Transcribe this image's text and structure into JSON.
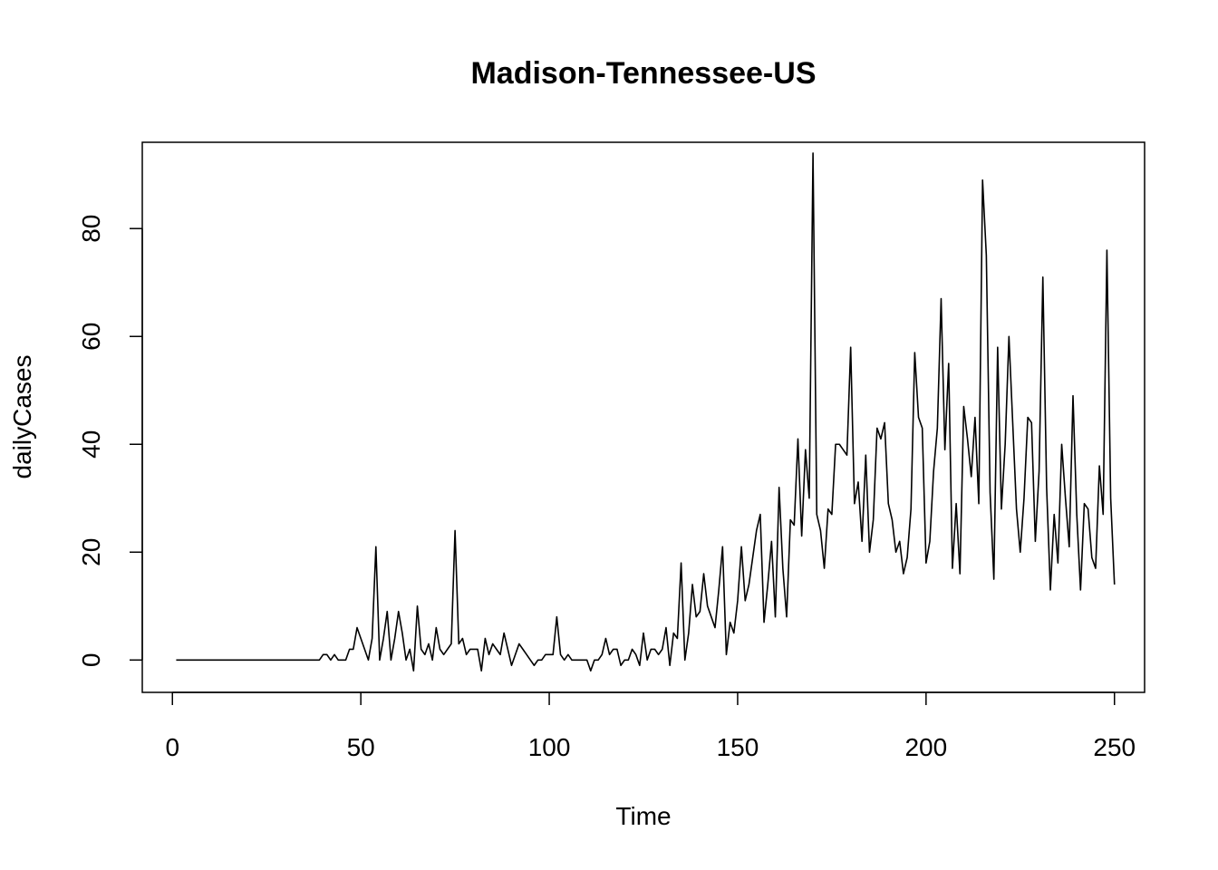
{
  "chart_data": {
    "type": "line",
    "title": "Madison-Tennessee-US",
    "xlabel": "Time",
    "ylabel": "dailyCases",
    "xlim": [
      -8,
      258
    ],
    "ylim": [
      -6,
      96
    ],
    "x_ticks": [
      0,
      50,
      100,
      150,
      200,
      250
    ],
    "y_ticks": [
      0,
      20,
      40,
      60,
      80
    ],
    "grid": false,
    "legend": "none",
    "line_color": "#000000",
    "x_start": 1,
    "values": [
      0,
      0,
      0,
      0,
      0,
      0,
      0,
      0,
      0,
      0,
      0,
      0,
      0,
      0,
      0,
      0,
      0,
      0,
      0,
      0,
      0,
      0,
      0,
      0,
      0,
      0,
      0,
      0,
      0,
      0,
      0,
      0,
      0,
      0,
      0,
      0,
      0,
      0,
      0,
      1,
      1,
      0,
      1,
      0,
      0,
      0,
      2,
      2,
      6,
      4,
      2,
      0,
      4,
      21,
      0,
      4,
      9,
      0,
      4,
      9,
      5,
      0,
      2,
      -2,
      10,
      2,
      1,
      3,
      0,
      6,
      2,
      1,
      2,
      3,
      24,
      3,
      4,
      1,
      2,
      2,
      2,
      -2,
      4,
      1,
      3,
      2,
      1,
      5,
      2,
      -1,
      1,
      3,
      2,
      1,
      0,
      -1,
      0,
      0,
      1,
      1,
      1,
      8,
      1,
      0,
      1,
      0,
      0,
      0,
      0,
      0,
      -2,
      0,
      0,
      1,
      4,
      1,
      2,
      2,
      -1,
      0,
      0,
      2,
      1,
      -1,
      5,
      0,
      2,
      2,
      1,
      2,
      6,
      -1,
      5,
      4,
      18,
      0,
      5,
      14,
      8,
      9,
      16,
      10,
      8,
      6,
      13,
      21,
      1,
      7,
      5,
      11,
      21,
      11,
      14,
      19,
      24,
      27,
      7,
      14,
      22,
      8,
      32,
      17,
      8,
      26,
      25,
      41,
      23,
      39,
      30,
      94,
      27,
      24,
      17,
      28,
      27,
      40,
      40,
      39,
      38,
      58,
      29,
      33,
      22,
      38,
      20,
      26,
      43,
      41,
      44,
      29,
      26,
      20,
      22,
      16,
      19,
      28,
      57,
      45,
      43,
      18,
      22,
      35,
      43,
      67,
      39,
      55,
      17,
      29,
      16,
      47,
      41,
      34,
      45,
      29,
      89,
      75,
      31,
      15,
      58,
      28,
      40,
      60,
      44,
      28,
      20,
      30,
      45,
      44,
      22,
      35,
      71,
      32,
      13,
      27,
      18,
      40,
      30,
      21,
      49,
      27,
      13,
      29,
      28,
      19,
      17,
      36,
      27,
      76,
      30,
      14
    ]
  }
}
